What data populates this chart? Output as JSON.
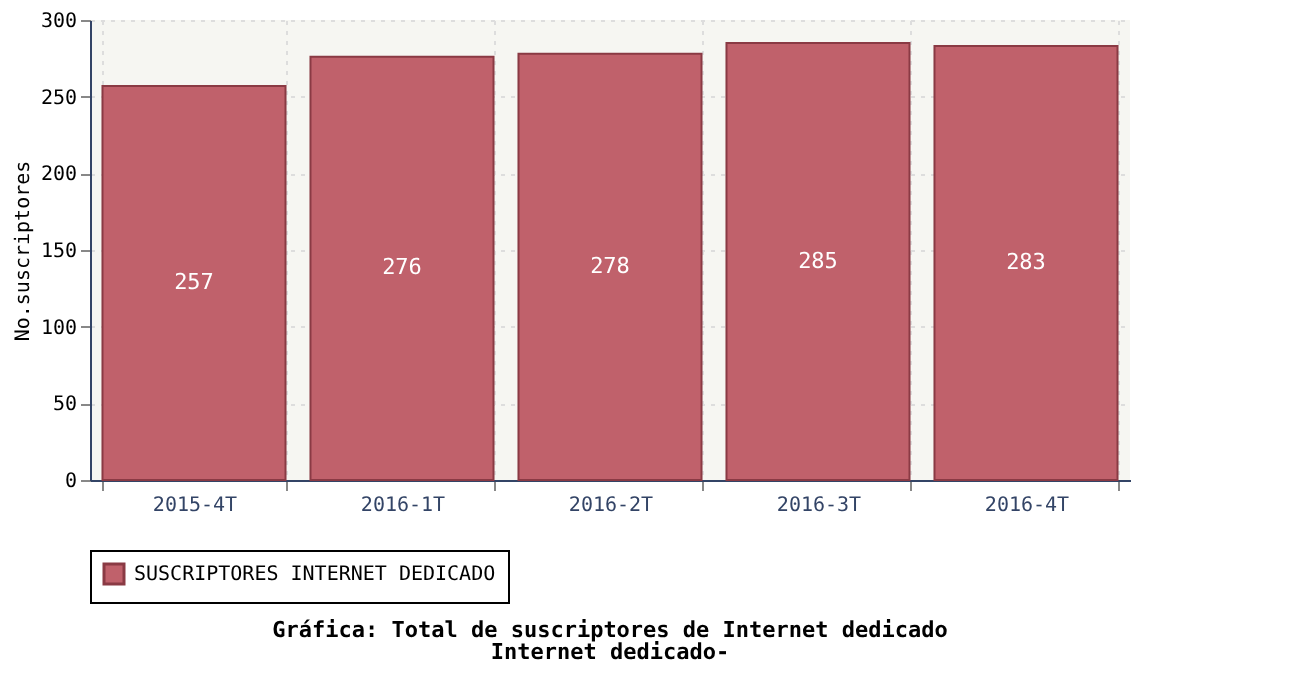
{
  "chart_data": {
    "type": "bar",
    "title": "Gráfica: Total de suscriptores de Internet dedicado",
    "subtitle": "Internet dedicado-",
    "ylabel": "No.suscriptores",
    "categories": [
      "2015-4T",
      "2016-1T",
      "2016-2T",
      "2016-3T",
      "2016-4T"
    ],
    "series": [
      {
        "name": "SUSCRIPTORES INTERNET DEDICADO",
        "color": "#c0616b",
        "values": [
          257,
          276,
          278,
          285,
          283
        ]
      }
    ],
    "ylim": [
      0,
      300
    ],
    "yticks": [
      0,
      50,
      100,
      150,
      200,
      250,
      300
    ],
    "grid": true,
    "legend": "bottom",
    "data_labels": true
  }
}
